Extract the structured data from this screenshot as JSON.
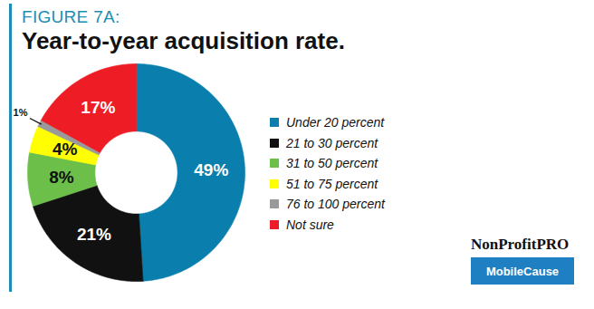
{
  "chart_data": {
    "type": "donut",
    "subtitle": "FIGURE 7A:",
    "title": "Year-to-year acquisition rate.",
    "categories": [
      "Under 20 percent",
      "21 to 30 percent",
      "31 to 50 percent",
      "51 to 75 percent",
      "76 to 100 percent",
      "Not sure"
    ],
    "values": [
      49,
      21,
      8,
      4,
      1,
      17
    ],
    "value_labels": [
      "49%",
      "21%",
      "8%",
      "4%",
      "1%",
      "17%"
    ],
    "colors": [
      "#0a7fae",
      "#111111",
      "#6cc04a",
      "#ffff00",
      "#9a9a9a",
      "#ee1c24"
    ],
    "data_labels": true,
    "legend": "right",
    "annotations": [
      "NonProfitPRO",
      "MobileCause"
    ]
  }
}
